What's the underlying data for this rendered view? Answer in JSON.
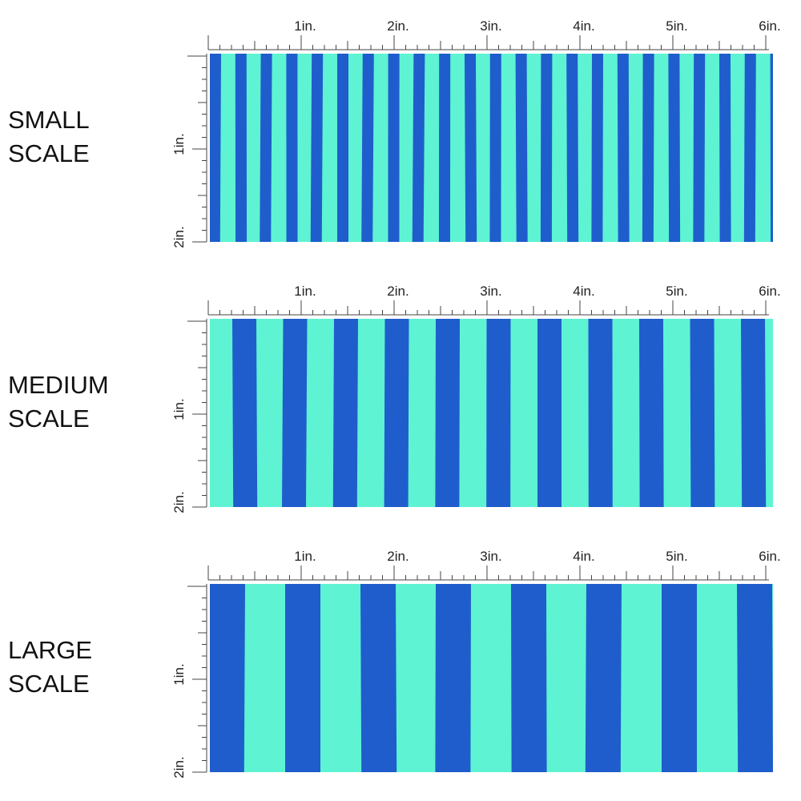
{
  "panels": [
    {
      "label": [
        "SMALL",
        "SCALE"
      ],
      "top_ruler": [
        "1in.",
        "2in.",
        "3in.",
        "4in.",
        "5in.",
        "6in."
      ],
      "side_ruler": [
        "1in.",
        "2in."
      ]
    },
    {
      "label": [
        "MEDIUM",
        "SCALE"
      ],
      "top_ruler": [
        "1in.",
        "2in.",
        "3in.",
        "4in.",
        "5in.",
        "6in."
      ],
      "side_ruler": [
        "1in.",
        "2in."
      ]
    },
    {
      "label": [
        "LARGE",
        "SCALE"
      ],
      "top_ruler": [
        "1in.",
        "2in.",
        "3in.",
        "4in.",
        "5in.",
        "6in."
      ],
      "side_ruler": [
        "1in.",
        "2in."
      ]
    }
  ]
}
